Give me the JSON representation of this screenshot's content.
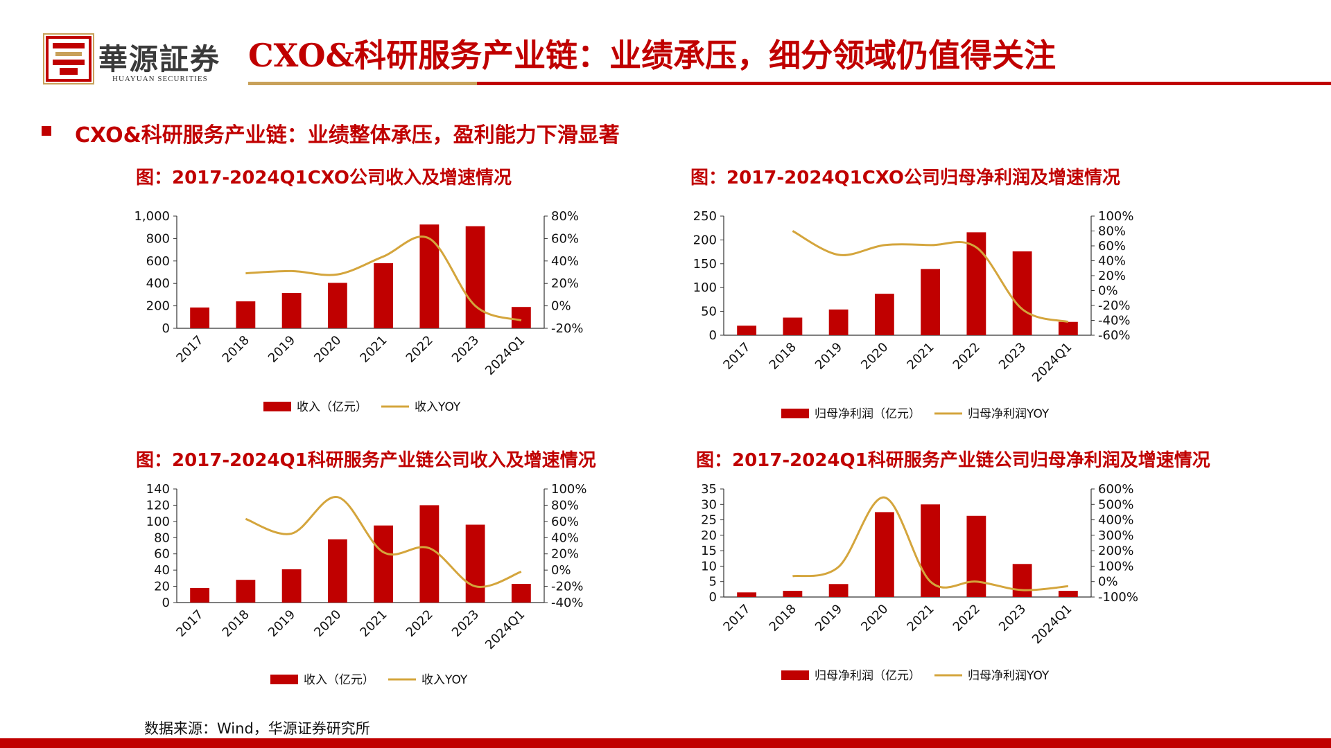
{
  "logo": {
    "name_cn": "華源証券",
    "name_en": "HUAYUAN SECURITIES"
  },
  "page_title": "CXO&科研服务产业链：业绩承压，细分领域仍值得关注",
  "section_heading": "CXO&科研服务产业链：业绩整体承压，盈利能力下滑显著",
  "source_note": "数据来源：Wind，华源证券研究所",
  "colors": {
    "accent": "#c00000",
    "bar": "#c00000",
    "line": "#d4a53c",
    "gold_rule": "#c8a15a"
  },
  "chart_data": [
    {
      "type": "bar+line",
      "title": "图：2017-2024Q1CXO公司收入及增速情况",
      "categories": [
        "2017",
        "2018",
        "2019",
        "2020",
        "2021",
        "2022",
        "2023",
        "2024Q1"
      ],
      "series": [
        {
          "name": "收入（亿元）",
          "type": "bar",
          "axis": "left",
          "values": [
            185,
            240,
            315,
            405,
            580,
            925,
            910,
            190
          ]
        },
        {
          "name": "收入YOY",
          "type": "line",
          "axis": "right",
          "values": [
            null,
            29,
            31,
            28,
            44,
            60,
            0,
            -13
          ]
        }
      ],
      "y_left": {
        "min": 0,
        "max": 1000,
        "ticks": [
          0,
          200,
          400,
          600,
          800,
          1000
        ],
        "tick_labels": [
          "0",
          "200",
          "400",
          "600",
          "800",
          "1,000"
        ]
      },
      "y_right": {
        "min": -20,
        "max": 80,
        "ticks": [
          -20,
          0,
          20,
          40,
          60,
          80
        ],
        "tick_labels": [
          "-20%",
          "0%",
          "20%",
          "40%",
          "60%",
          "80%"
        ]
      },
      "legend": "bottom"
    },
    {
      "type": "bar+line",
      "title": "图：2017-2024Q1CXO公司归母净利润及增速情况",
      "categories": [
        "2017",
        "2018",
        "2019",
        "2020",
        "2021",
        "2022",
        "2023",
        "2024Q1"
      ],
      "series": [
        {
          "name": "归母净利润（亿元）",
          "type": "bar",
          "axis": "left",
          "values": [
            20,
            37,
            54,
            87,
            139,
            216,
            176,
            28
          ]
        },
        {
          "name": "归母净利润YOY",
          "type": "line",
          "axis": "right",
          "values": [
            null,
            80,
            48,
            61,
            61,
            58,
            -25,
            -42
          ]
        }
      ],
      "y_left": {
        "min": 0,
        "max": 250,
        "ticks": [
          0,
          50,
          100,
          150,
          200,
          250
        ],
        "tick_labels": [
          "0",
          "50",
          "100",
          "150",
          "200",
          "250"
        ]
      },
      "y_right": {
        "min": -60,
        "max": 100,
        "ticks": [
          -60,
          -40,
          -20,
          0,
          20,
          40,
          60,
          80,
          100
        ],
        "tick_labels": [
          "-60%",
          "-40%",
          "-20%",
          "0%",
          "20%",
          "40%",
          "60%",
          "80%",
          "100%"
        ]
      },
      "legend": "bottom"
    },
    {
      "type": "bar+line",
      "title": "图：2017-2024Q1科研服务产业链公司收入及增速情况",
      "categories": [
        "2017",
        "2018",
        "2019",
        "2020",
        "2021",
        "2022",
        "2023",
        "2024Q1"
      ],
      "series": [
        {
          "name": "收入（亿元）",
          "type": "bar",
          "axis": "left",
          "values": [
            18,
            28,
            41,
            78,
            95,
            120,
            96,
            23
          ]
        },
        {
          "name": "收入YOY",
          "type": "line",
          "axis": "right",
          "values": [
            null,
            63,
            45,
            90,
            22,
            27,
            -20,
            -2
          ]
        }
      ],
      "y_left": {
        "min": 0,
        "max": 140,
        "ticks": [
          0,
          20,
          40,
          60,
          80,
          100,
          120,
          140
        ],
        "tick_labels": [
          "0",
          "20",
          "40",
          "60",
          "80",
          "100",
          "120",
          "140"
        ]
      },
      "y_right": {
        "min": -40,
        "max": 100,
        "ticks": [
          -40,
          -20,
          0,
          20,
          40,
          60,
          80,
          100
        ],
        "tick_labels": [
          "-40%",
          "-20%",
          "0%",
          "20%",
          "40%",
          "60%",
          "80%",
          "100%"
        ]
      },
      "legend": "bottom"
    },
    {
      "type": "bar+line",
      "title": "图：2017-2024Q1科研服务产业链公司归母净利润及增速情况",
      "categories": [
        "2017",
        "2018",
        "2019",
        "2020",
        "2021",
        "2022",
        "2023",
        "2024Q1"
      ],
      "series": [
        {
          "name": "归母净利润（亿元）",
          "type": "bar",
          "axis": "left",
          "values": [
            1.5,
            2.0,
            4.2,
            27.5,
            30,
            26.3,
            10.7,
            2.0
          ]
        },
        {
          "name": "归母净利润YOY",
          "type": "line",
          "axis": "right",
          "values": [
            null,
            35,
            95,
            545,
            0,
            0,
            -55,
            -30
          ]
        }
      ],
      "y_left": {
        "min": 0,
        "max": 35,
        "ticks": [
          0,
          5,
          10,
          15,
          20,
          25,
          30,
          35
        ],
        "tick_labels": [
          "0",
          "5",
          "10",
          "15",
          "20",
          "25",
          "30",
          "35"
        ]
      },
      "y_right": {
        "min": -100,
        "max": 600,
        "ticks": [
          -100,
          0,
          100,
          200,
          300,
          400,
          500,
          600
        ],
        "tick_labels": [
          "-100%",
          "0%",
          "100%",
          "200%",
          "300%",
          "400%",
          "500%",
          "600%"
        ]
      },
      "legend": "bottom"
    }
  ]
}
